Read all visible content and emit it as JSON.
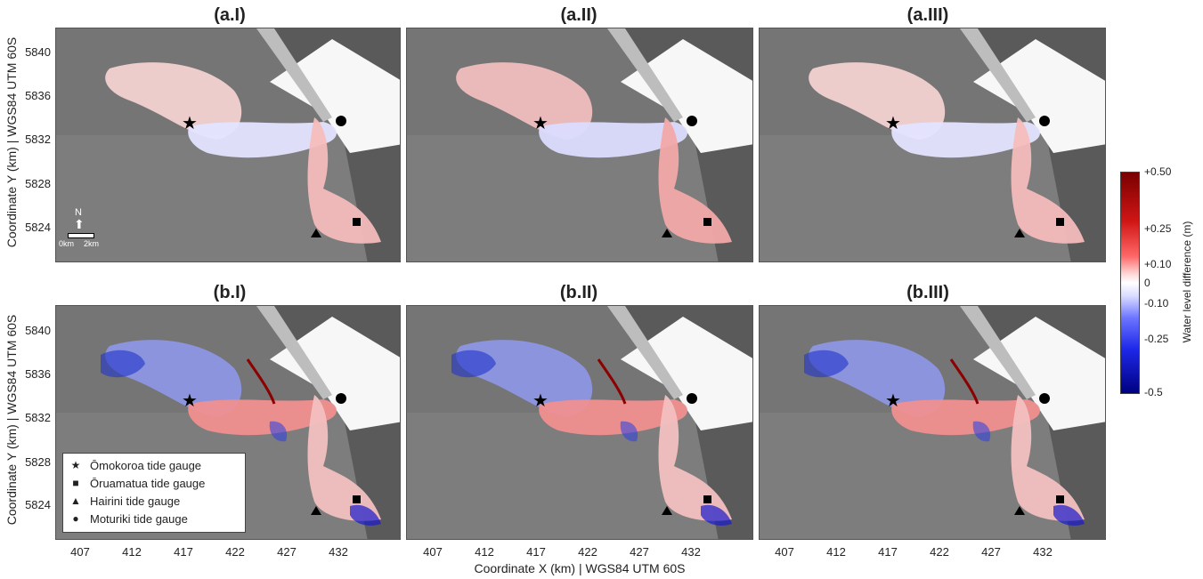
{
  "panels": [
    {
      "title": "(a.I)"
    },
    {
      "title": "(a.II)"
    },
    {
      "title": "(a.III)"
    },
    {
      "title": "(b.I)"
    },
    {
      "title": "(b.II)"
    },
    {
      "title": "(b.III)"
    }
  ],
  "axes": {
    "ylabel": "Coordinate Y (km) | WGS84 UTM 60S",
    "xlabel": "Coordinate X (km) | WGS84 UTM 60S",
    "yticks": [
      "5840",
      "5836",
      "5832",
      "5828",
      "5824"
    ],
    "xticks": [
      "407",
      "412",
      "417",
      "422",
      "427",
      "432"
    ]
  },
  "legend": [
    {
      "symbol": "★",
      "label": "Ōmokoroa tide gauge"
    },
    {
      "symbol": "■",
      "label": "Ōruamatua tide gauge"
    },
    {
      "symbol": "▲",
      "label": "Hairini tide gauge"
    },
    {
      "symbol": "●",
      "label": "Moturiki tide gauge"
    }
  ],
  "colorbar": {
    "label": "Water level difference (m)",
    "ticks": [
      "+0.50",
      "+0.25",
      "+0.10",
      "0",
      "-0.10",
      "-0.25",
      "-0.5"
    ]
  },
  "scalebar": {
    "north": "N",
    "left": "0km",
    "right": "2km"
  }
}
